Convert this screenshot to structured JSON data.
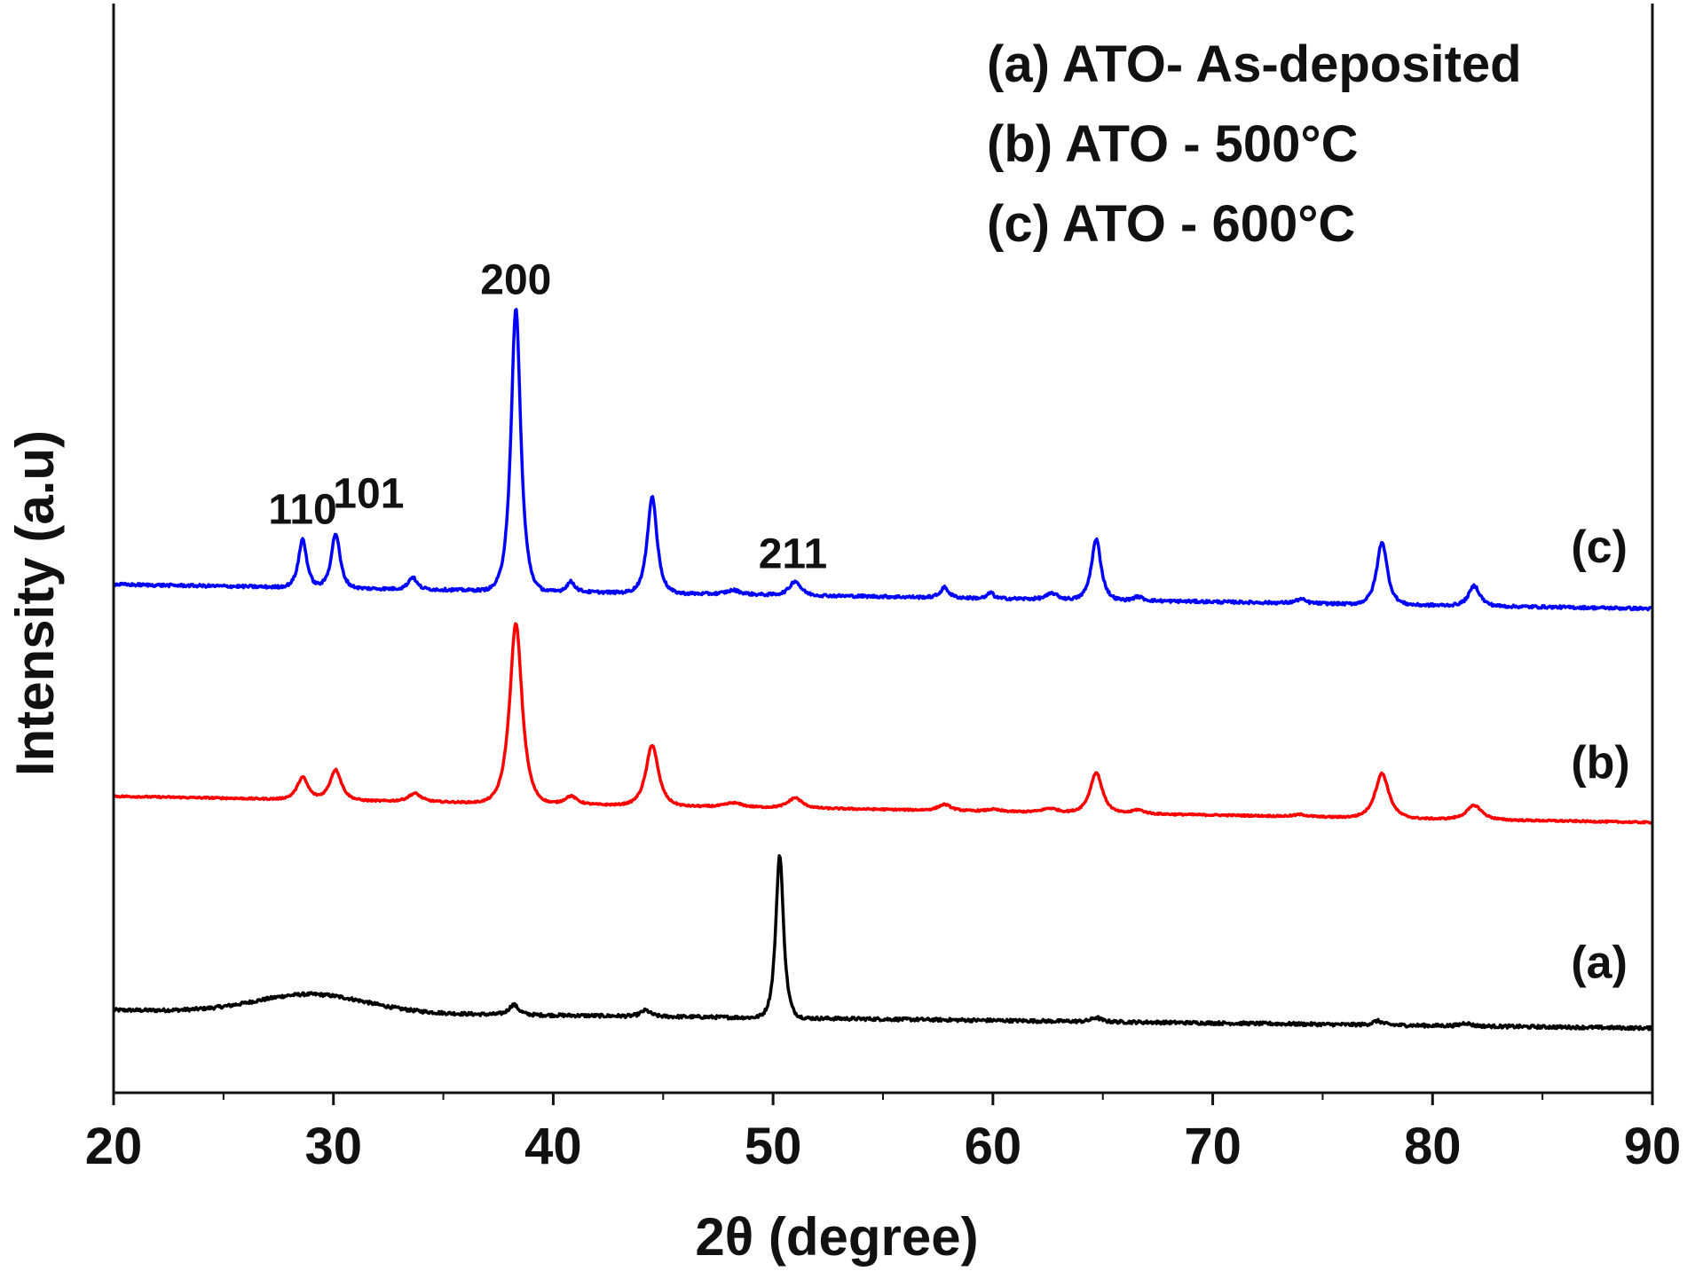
{
  "chart_data": {
    "type": "line",
    "title": "",
    "xlabel": "2θ (degree)",
    "ylabel": "Intensity (a.u)",
    "xlim": [
      20,
      90
    ],
    "ylim": [
      0,
      5.4
    ],
    "xticks": [
      20,
      30,
      40,
      50,
      60,
      70,
      80,
      90
    ],
    "xtick_labels": [
      "20",
      "30",
      "40",
      "50",
      "60",
      "70",
      "80",
      "90"
    ],
    "yticks_shown": false,
    "grid": false,
    "legend_position": "top-right",
    "legend": [
      "(a) ATO- As-deposited",
      "(b) ATO - 500°C",
      "(c) ATO - 600°C"
    ],
    "series": [
      {
        "name": "(a) ATO- As-deposited",
        "curve_label": "(a)",
        "color": "#000000",
        "baseline_start": 0.41,
        "baseline_end": 0.32,
        "humps": [
          {
            "center": 29,
            "height": 0.09,
            "width": 3.5
          }
        ],
        "noise": 0.008,
        "peaks": [
          {
            "x": 38.2,
            "height": 0.05,
            "width": 0.35
          },
          {
            "x": 44.2,
            "height": 0.03,
            "width": 0.35
          },
          {
            "x": 50.3,
            "height": 0.81,
            "width": 0.28
          },
          {
            "x": 64.7,
            "height": 0.02,
            "width": 0.35
          },
          {
            "x": 77.5,
            "height": 0.02,
            "width": 0.35
          },
          {
            "x": 81.5,
            "height": 0.015,
            "width": 0.35
          }
        ]
      },
      {
        "name": "(b) ATO - 500°C",
        "curve_label": "(b)",
        "color": "#ff0000",
        "baseline_start": 1.47,
        "baseline_end": 1.34,
        "humps": [],
        "noise": 0.004,
        "peaks": [
          {
            "x": 28.6,
            "height": 0.11,
            "width": 0.4
          },
          {
            "x": 30.1,
            "height": 0.15,
            "width": 0.42
          },
          {
            "x": 33.7,
            "height": 0.04,
            "width": 0.45
          },
          {
            "x": 38.3,
            "height": 0.89,
            "width": 0.45
          },
          {
            "x": 40.8,
            "height": 0.04,
            "width": 0.45
          },
          {
            "x": 44.5,
            "height": 0.3,
            "width": 0.45
          },
          {
            "x": 48.2,
            "height": 0.02,
            "width": 0.6
          },
          {
            "x": 51.0,
            "height": 0.05,
            "width": 0.5
          },
          {
            "x": 57.8,
            "height": 0.03,
            "width": 0.45
          },
          {
            "x": 60.0,
            "height": 0.01,
            "width": 0.45
          },
          {
            "x": 62.6,
            "height": 0.02,
            "width": 0.55
          },
          {
            "x": 64.7,
            "height": 0.2,
            "width": 0.45
          },
          {
            "x": 66.6,
            "height": 0.02,
            "width": 0.45
          },
          {
            "x": 74.0,
            "height": 0.01,
            "width": 0.45
          },
          {
            "x": 77.7,
            "height": 0.22,
            "width": 0.5
          },
          {
            "x": 81.9,
            "height": 0.07,
            "width": 0.55
          }
        ]
      },
      {
        "name": "(c) ATO - 600°C",
        "curve_label": "(c)",
        "color": "#0000ff",
        "baseline_start": 2.52,
        "baseline_end": 2.4,
        "humps": [],
        "noise": 0.007,
        "peaks": [
          {
            "x": 28.6,
            "height": 0.24,
            "width": 0.3
          },
          {
            "x": 30.1,
            "height": 0.27,
            "width": 0.32
          },
          {
            "x": 33.6,
            "height": 0.06,
            "width": 0.3
          },
          {
            "x": 38.3,
            "height": 1.4,
            "width": 0.35
          },
          {
            "x": 40.8,
            "height": 0.05,
            "width": 0.3
          },
          {
            "x": 44.5,
            "height": 0.48,
            "width": 0.35
          },
          {
            "x": 48.2,
            "height": 0.02,
            "width": 0.5
          },
          {
            "x": 51.0,
            "height": 0.07,
            "width": 0.4
          },
          {
            "x": 57.8,
            "height": 0.05,
            "width": 0.3
          },
          {
            "x": 59.9,
            "height": 0.03,
            "width": 0.2
          },
          {
            "x": 62.7,
            "height": 0.03,
            "width": 0.4
          },
          {
            "x": 64.7,
            "height": 0.3,
            "width": 0.35
          },
          {
            "x": 66.6,
            "height": 0.02,
            "width": 0.35
          },
          {
            "x": 74.0,
            "height": 0.02,
            "width": 0.35
          },
          {
            "x": 77.7,
            "height": 0.31,
            "width": 0.38
          },
          {
            "x": 81.9,
            "height": 0.1,
            "width": 0.4
          }
        ]
      }
    ],
    "annotations": [
      {
        "text": "110",
        "x": 28.6,
        "y": 2.82
      },
      {
        "text": "101",
        "x": 31.6,
        "y": 2.9
      },
      {
        "text": "200",
        "x": 38.3,
        "y": 3.96
      },
      {
        "text": "211",
        "x": 50.9,
        "y": 2.6
      }
    ],
    "curve_label_positions": [
      {
        "label": "(a)",
        "x": 86.3,
        "y": 0.57
      },
      {
        "label": "(b)",
        "x": 86.3,
        "y": 1.56
      },
      {
        "label": "(c)",
        "x": 86.3,
        "y": 2.63
      }
    ]
  }
}
